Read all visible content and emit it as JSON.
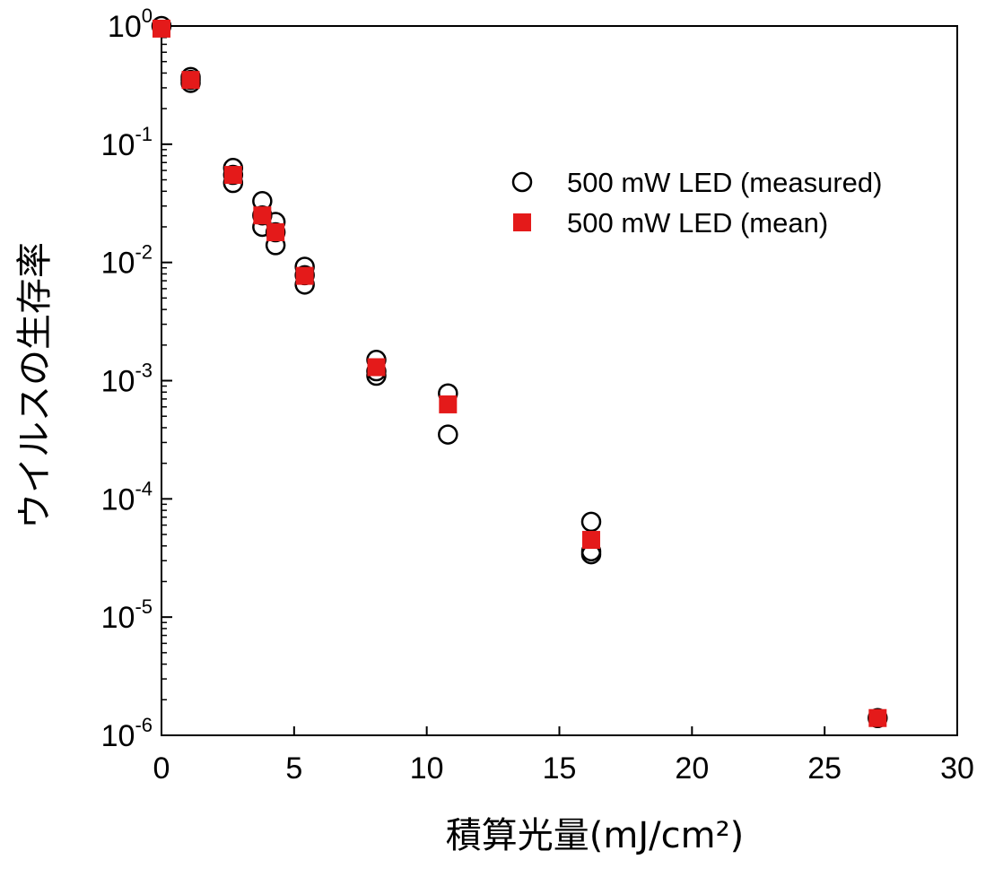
{
  "chart_data": {
    "type": "scatter",
    "xlabel": "積算光量(mJ/cm²)",
    "ylabel": "ウイルスの生存率",
    "x_scale": "linear",
    "y_scale": "log",
    "xlim": [
      0,
      30
    ],
    "ylim": [
      1e-06,
      1
    ],
    "x_ticks": [
      0,
      5,
      10,
      15,
      20,
      25,
      30
    ],
    "x_tick_labels": [
      "0",
      "5",
      "10",
      "15",
      "20",
      "25",
      "30"
    ],
    "y_ticks": [
      {
        "value": 1,
        "base": "10",
        "exp": "0"
      },
      {
        "value": 0.1,
        "base": "10",
        "exp": "-1"
      },
      {
        "value": 0.01,
        "base": "10",
        "exp": "-2"
      },
      {
        "value": 0.001,
        "base": "10",
        "exp": "-3"
      },
      {
        "value": 0.0001,
        "base": "10",
        "exp": "-4"
      },
      {
        "value": 1e-05,
        "base": "10",
        "exp": "-5"
      },
      {
        "value": 1e-06,
        "base": "10",
        "exp": "-6"
      }
    ],
    "grid": false,
    "legend_position": "top-right",
    "series": [
      {
        "name": "500 mW LED (measured)",
        "marker": "open-circle",
        "color": "#000000",
        "points": [
          {
            "x": 0,
            "y": 1.0
          },
          {
            "x": 1.1,
            "y": 0.37
          },
          {
            "x": 1.1,
            "y": 0.35
          },
          {
            "x": 1.1,
            "y": 0.33
          },
          {
            "x": 2.7,
            "y": 0.063
          },
          {
            "x": 2.7,
            "y": 0.055
          },
          {
            "x": 2.7,
            "y": 0.047
          },
          {
            "x": 3.8,
            "y": 0.033
          },
          {
            "x": 3.8,
            "y": 0.025
          },
          {
            "x": 3.8,
            "y": 0.02
          },
          {
            "x": 4.3,
            "y": 0.022
          },
          {
            "x": 4.3,
            "y": 0.018
          },
          {
            "x": 4.3,
            "y": 0.014
          },
          {
            "x": 5.4,
            "y": 0.0092
          },
          {
            "x": 5.4,
            "y": 0.0078
          },
          {
            "x": 5.4,
            "y": 0.0065
          },
          {
            "x": 8.1,
            "y": 0.0015
          },
          {
            "x": 8.1,
            "y": 0.0012
          },
          {
            "x": 8.1,
            "y": 0.0011
          },
          {
            "x": 10.8,
            "y": 0.00078
          },
          {
            "x": 10.8,
            "y": 0.00035
          },
          {
            "x": 16.2,
            "y": 6.4e-05
          },
          {
            "x": 16.2,
            "y": 3.6e-05
          },
          {
            "x": 16.2,
            "y": 3.4e-05
          },
          {
            "x": 27.0,
            "y": 1.4e-06
          }
        ]
      },
      {
        "name": "500 mW LED (mean)",
        "marker": "filled-square",
        "color": "#e41a1a",
        "points": [
          {
            "x": 0,
            "y": 0.95
          },
          {
            "x": 1.1,
            "y": 0.35
          },
          {
            "x": 2.7,
            "y": 0.055
          },
          {
            "x": 3.8,
            "y": 0.025
          },
          {
            "x": 4.3,
            "y": 0.018
          },
          {
            "x": 5.4,
            "y": 0.0077
          },
          {
            "x": 8.1,
            "y": 0.0013
          },
          {
            "x": 10.8,
            "y": 0.00063
          },
          {
            "x": 16.2,
            "y": 4.5e-05
          },
          {
            "x": 27.0,
            "y": 1.4e-06
          }
        ]
      }
    ]
  }
}
